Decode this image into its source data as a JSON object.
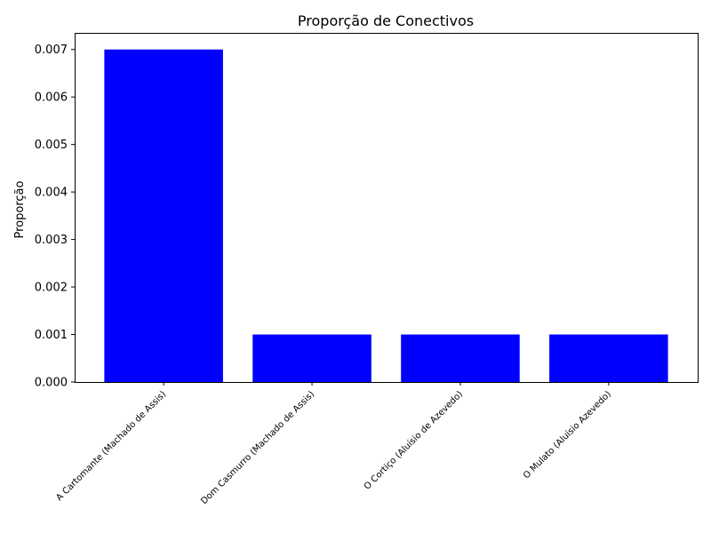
{
  "chart_data": {
    "type": "bar",
    "title": "Proporção de Conectivos",
    "xlabel": "",
    "ylabel": "Proporção",
    "categories": [
      "A Cartomante (Machado de Assis)",
      "Dom Casmurro (Machado de Assis)",
      "O Cortiço (Aluísio de Azevedo)",
      "O Mulato (Aluísio Azevedo)"
    ],
    "values": [
      0.007,
      0.001,
      0.001,
      0.001
    ],
    "ylim": [
      0,
      0.00735
    ],
    "yticks": [
      0.0,
      0.001,
      0.002,
      0.003,
      0.004,
      0.005,
      0.006,
      0.007
    ],
    "ytick_labels": [
      "0.000",
      "0.001",
      "0.002",
      "0.003",
      "0.004",
      "0.005",
      "0.006",
      "0.007"
    ],
    "bar_color": "#0000ff",
    "grid": false,
    "legend": "none"
  }
}
